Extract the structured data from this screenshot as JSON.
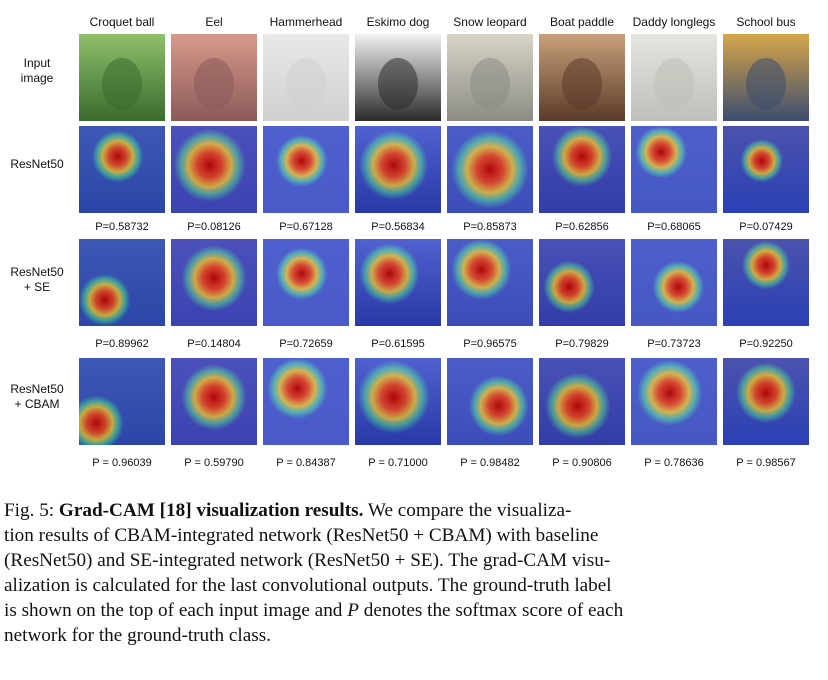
{
  "figure": {
    "columns": [
      "Croquet ball",
      "Eel",
      "Hammerhead",
      "Eskimo dog",
      "Snow leopard",
      "Boat paddle",
      "Daddy longlegs",
      "School bus"
    ],
    "rows": [
      {
        "label_lines": [
          "Input",
          "image"
        ],
        "kind": "input",
        "scores": []
      },
      {
        "label_lines": [
          "ResNet50"
        ],
        "kind": "resnet",
        "scores": [
          "P=0.58732",
          "P=0.08126",
          "P=0.67128",
          "P=0.56834",
          "P=0.85873",
          "P=0.62856",
          "P=0.68065",
          "P=0.07429"
        ]
      },
      {
        "label_lines": [
          "ResNet50",
          "+ SE"
        ],
        "kind": "se",
        "scores": [
          "P=0.89962",
          "P=0.14804",
          "P=0.72659",
          "P=0.61595",
          "P=0.96575",
          "P=0.79829",
          "P=0.73723",
          "P=0.92250"
        ]
      },
      {
        "label_lines": [
          "ResNet50",
          "+ CBAM"
        ],
        "kind": "cbam",
        "scores": [
          "P = 0.96039",
          "P = 0.59790",
          "P = 0.84387",
          "P = 0.71000",
          "P = 0.98482",
          "P = 0.90806",
          "P = 0.78636",
          "P = 0.98567"
        ]
      }
    ]
  },
  "caption": {
    "prefix": "Fig. 5: ",
    "bold": "Grad-CAM [18] visualization results.",
    "line1": " We compare the visualiza-",
    "line2": "tion results of CBAM-integrated network (ResNet50 + CBAM) with baseline",
    "line3": "(ResNet50) and SE-integrated network (ResNet50 + SE). The grad-CAM visu-",
    "line4": "alization is calculated for the last convolutional outputs. The ground-truth label",
    "line5a": "is shown on the top of each input image and ",
    "symbol": "P",
    "line5b": " denotes the softmax score of each",
    "line6": "network for the ground-truth class."
  },
  "palette": {
    "croquet": [
      "#3a6b2f",
      "#8fbf6a"
    ],
    "eel": [
      "#8a5a5a",
      "#d89a8a"
    ],
    "hammerhead": [
      "#cfcfcf",
      "#e9e9e9"
    ],
    "eskimo": [
      "#2b2b2b",
      "#f1f1f1"
    ],
    "leopard": [
      "#8c8c84",
      "#d8d4c8"
    ],
    "paddle": [
      "#5b3b2a",
      "#c9a07a"
    ],
    "longlegs": [
      "#bdbfb8",
      "#e4e6df"
    ],
    "bus": [
      "#3c4c6e",
      "#d6a64a"
    ]
  }
}
